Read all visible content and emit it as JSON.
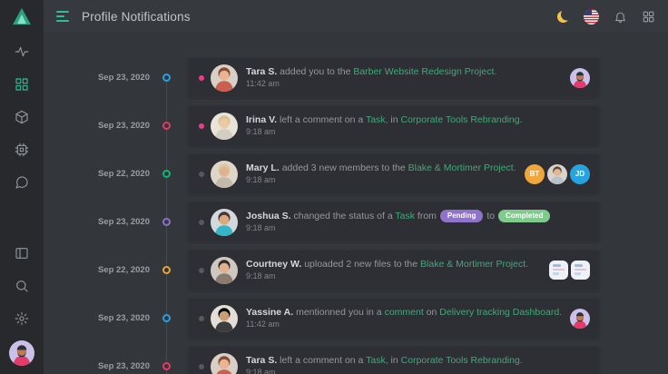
{
  "header": {
    "title": "Profile Notifications",
    "actions": [
      {
        "name": "dark-mode-toggle",
        "icon": "moon-icon"
      },
      {
        "name": "language-selector",
        "icon": "us-flag-icon"
      },
      {
        "name": "notifications-bell",
        "icon": "bell-icon"
      },
      {
        "name": "apps-menu",
        "icon": "apps-grid-icon"
      }
    ]
  },
  "sidebar": {
    "logo": "triangle-logo",
    "items": [
      {
        "icon": "activity-icon",
        "active": false
      },
      {
        "icon": "dashboard-grid-icon",
        "active": true
      },
      {
        "icon": "box-icon",
        "active": false
      },
      {
        "icon": "cpu-icon",
        "active": false
      },
      {
        "icon": "chat-icon",
        "active": false
      }
    ],
    "bottom_items": [
      {
        "icon": "layout-icon"
      },
      {
        "icon": "search-icon"
      },
      {
        "icon": "settings-gear-icon"
      }
    ],
    "user_avatar": "bearded-man-illustration"
  },
  "colors": {
    "accent": "#2dbe96",
    "link": "#43a878",
    "unread_dot": "#ee3d8d",
    "read_dot": "#56595f",
    "badge_pending": "#8f72c9",
    "badge_completed": "#7fca8c"
  },
  "avatar_palettes": {
    "tara": {
      "bg": "#d8cfc6",
      "hair": "#8a4a38",
      "skin": "#e8b492",
      "shirt": "#c9604f"
    },
    "irina": {
      "bg": "#e9e4d9",
      "hair": "#d9c18f",
      "skin": "#eec7a6",
      "shirt": "#d4cec2"
    },
    "mary": {
      "bg": "#ded6c8",
      "hair": "#d9c8a4",
      "skin": "#e0b28f",
      "shirt": "#c4baab"
    },
    "joshua": {
      "bg": "#d2d9dc",
      "hair": "#463830",
      "skin": "#dca87e",
      "shirt": "#35b6c6"
    },
    "courtney": {
      "bg": "#cfc8c1",
      "hair": "#372c26",
      "skin": "#e2b08e",
      "shirt": "#8a7b6e"
    },
    "yassine": {
      "bg": "#e3ded6",
      "hair": "#2b231",
      "skin": "#c99e77",
      "shirt": "#3d3d3f"
    },
    "member": {
      "bg": "#d8d4cd",
      "hair": "#5a4a3a",
      "skin": "#e3b894",
      "shirt": "#b8c2c8"
    }
  },
  "illustration_palette": {
    "bg": "#cbc1e8",
    "hair": "#2a3138",
    "skin": "#bd7c50",
    "shirt": "#e73a6c"
  },
  "notifications": [
    {
      "date": "Sep 23, 2020",
      "marker_color": "#2d9de2",
      "unread": true,
      "user": "Tara S.",
      "time": "11:42 am",
      "avatar": "tara",
      "message": [
        {
          "t": "added you to the "
        },
        {
          "t": "Barber Website Redesign Project.",
          "link": true
        }
      ],
      "right": {
        "type": "avatars",
        "items": [
          {
            "kind": "illust"
          }
        ]
      }
    },
    {
      "date": "Sep 23, 2020",
      "marker_color": "#e33b63",
      "unread": true,
      "user": "Irina V.",
      "time": "9:18 am",
      "avatar": "irina",
      "message": [
        {
          "t": "left a comment on a "
        },
        {
          "t": "Task,",
          "link": true
        },
        {
          "t": " in "
        },
        {
          "t": "Corporate Tools Rebranding.",
          "link": true
        }
      ],
      "right": null
    },
    {
      "date": "Sep 22, 2020",
      "marker_color": "#0fb673",
      "unread": false,
      "user": "Mary L.",
      "time": "9:18 am",
      "avatar": "mary",
      "message": [
        {
          "t": "added 3 new members to the "
        },
        {
          "t": "Blake & Mortimer Project.",
          "link": true
        }
      ],
      "right": {
        "type": "avatars",
        "items": [
          {
            "kind": "initials",
            "text": "BT",
            "bg": "#f0a63b"
          },
          {
            "kind": "photo",
            "avatar": "member"
          },
          {
            "kind": "initials",
            "text": "JD",
            "bg": "#27a3e0"
          }
        ]
      }
    },
    {
      "date": "Sep 23, 2020",
      "marker_color": "#8b70cc",
      "unread": false,
      "user": "Joshua S.",
      "time": "9:18 am",
      "avatar": "joshua",
      "message": [
        {
          "t": "changed the status of a "
        },
        {
          "t": "Task",
          "link": true
        },
        {
          "t": " from "
        },
        {
          "badge": "Pending",
          "bg": "#8f72c9"
        },
        {
          "t": " to "
        },
        {
          "badge": "Completed",
          "bg": "#7fca8c"
        }
      ],
      "right": null
    },
    {
      "date": "Sep 22, 2020",
      "marker_color": "#e7a63b",
      "unread": false,
      "user": "Courtney W.",
      "time": "9:18 am",
      "avatar": "courtney",
      "message": [
        {
          "t": "uploaded 2 new files to the "
        },
        {
          "t": "Blake & Mortimer Project.",
          "link": true
        }
      ],
      "right": {
        "type": "files",
        "count": 2
      }
    },
    {
      "date": "Sep 23, 2020",
      "marker_color": "#2d9de2",
      "unread": false,
      "user": "Yassine A.",
      "time": "11:42 am",
      "avatar": "yassine",
      "message": [
        {
          "t": "mentionned you in a "
        },
        {
          "t": "comment",
          "link": true
        },
        {
          "t": " on "
        },
        {
          "t": "Delivery tracking Dashboard.",
          "link": true
        }
      ],
      "right": {
        "type": "avatars",
        "items": [
          {
            "kind": "illust"
          }
        ]
      }
    },
    {
      "date": "Sep 23, 2020",
      "marker_color": "#e33b63",
      "unread": false,
      "user": "Tara S.",
      "time": "9:18 am",
      "avatar": "tara",
      "message": [
        {
          "t": "left a comment on a "
        },
        {
          "t": "Task,",
          "link": true
        },
        {
          "t": " in "
        },
        {
          "t": "Corporate Tools Rebranding.",
          "link": true
        }
      ],
      "right": null
    }
  ]
}
